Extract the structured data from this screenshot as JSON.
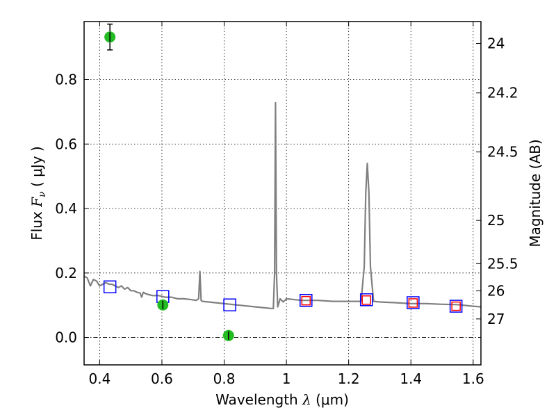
{
  "chart_data": {
    "type": "scatter",
    "xlabel": {
      "prefix": "Wavelength  ",
      "symbol": "λ",
      "suffix": " (μm)"
    },
    "ylabel": {
      "prefix": "Flux  ",
      "symbol": "F",
      "subscript": "ν",
      "suffix": "  ( μJy )"
    },
    "y2label": "Magnitude (AB)",
    "xlim": [
      0.35,
      1.625
    ],
    "ylim": [
      -0.085,
      0.98
    ],
    "grid": true,
    "x_ticks": [
      {
        "value": 0.4,
        "label": "0.4"
      },
      {
        "value": 0.6,
        "label": "0.6"
      },
      {
        "value": 0.8,
        "label": "0.8"
      },
      {
        "value": 1.0,
        "label": "1"
      },
      {
        "value": 1.2,
        "label": "1.2"
      },
      {
        "value": 1.4,
        "label": "1.4"
      },
      {
        "value": 1.6,
        "label": "1.6"
      }
    ],
    "y_ticks": [
      {
        "value": 0.0,
        "label": "0.0"
      },
      {
        "value": 0.2,
        "label": "0.2"
      },
      {
        "value": 0.4,
        "label": "0.4"
      },
      {
        "value": 0.6,
        "label": "0.6"
      },
      {
        "value": 0.8,
        "label": "0.8"
      }
    ],
    "y2_ticks": [
      {
        "value": 24,
        "label": "24"
      },
      {
        "value": 24.2,
        "label": "24.2"
      },
      {
        "value": 24.5,
        "label": "24.5"
      },
      {
        "value": 25,
        "label": "25"
      },
      {
        "value": 25.5,
        "label": "25.5"
      },
      {
        "value": 26,
        "label": "26"
      },
      {
        "value": 27,
        "label": "27"
      }
    ],
    "series": [
      {
        "kind": "line",
        "color": "#808080",
        "x": [
          0.35,
          0.36,
          0.37,
          0.38,
          0.39,
          0.4,
          0.41,
          0.42,
          0.43,
          0.44,
          0.45,
          0.46,
          0.47,
          0.48,
          0.49,
          0.5,
          0.51,
          0.52,
          0.53,
          0.535,
          0.54,
          0.55,
          0.57,
          0.59,
          0.61,
          0.63,
          0.65,
          0.67,
          0.69,
          0.71,
          0.718,
          0.722,
          0.726,
          0.73,
          0.75,
          0.8,
          0.85,
          0.9,
          0.95,
          0.958,
          0.962,
          0.965,
          0.968,
          0.972,
          0.98,
          0.99,
          1.0,
          1.02,
          1.05,
          1.1,
          1.15,
          1.2,
          1.24,
          1.25,
          1.255,
          1.26,
          1.265,
          1.27,
          1.28,
          1.3,
          1.35,
          1.4,
          1.45,
          1.5,
          1.55,
          1.6,
          1.625
        ],
        "y": [
          0.19,
          0.185,
          0.16,
          0.18,
          0.175,
          0.16,
          0.165,
          0.17,
          0.165,
          0.165,
          0.16,
          0.155,
          0.16,
          0.15,
          0.155,
          0.145,
          0.145,
          0.14,
          0.138,
          0.125,
          0.14,
          0.135,
          0.13,
          0.13,
          0.125,
          0.125,
          0.12,
          0.12,
          0.118,
          0.115,
          0.12,
          0.205,
          0.115,
          0.112,
          0.11,
          0.105,
          0.1,
          0.095,
          0.09,
          0.09,
          0.2,
          0.728,
          0.2,
          0.095,
          0.12,
          0.11,
          0.12,
          0.118,
          0.115,
          0.115,
          0.112,
          0.112,
          0.112,
          0.22,
          0.45,
          0.54,
          0.45,
          0.22,
          0.112,
          0.11,
          0.108,
          0.105,
          0.105,
          0.103,
          0.102,
          0.097,
          0.095
        ]
      },
      {
        "kind": "markers",
        "marker": "square",
        "edge_color": "#0000ff",
        "x": [
          0.433,
          0.603,
          0.818,
          1.063,
          1.257,
          1.407,
          1.545
        ],
        "y": [
          0.157,
          0.127,
          0.101,
          0.115,
          0.117,
          0.108,
          0.097
        ]
      },
      {
        "kind": "markers",
        "marker": "square",
        "edge_color": "#ff0000",
        "x": [
          1.063,
          1.257,
          1.407,
          1.545
        ],
        "y": [
          0.114,
          0.116,
          0.107,
          0.097
        ]
      },
      {
        "kind": "markers",
        "marker": "circle",
        "color": "#22bb22",
        "x": [
          0.433,
          0.603,
          0.814
        ],
        "y": [
          0.932,
          0.101,
          0.006
        ],
        "yerr": [
          0.04,
          0.013,
          0.013
        ]
      }
    ]
  }
}
